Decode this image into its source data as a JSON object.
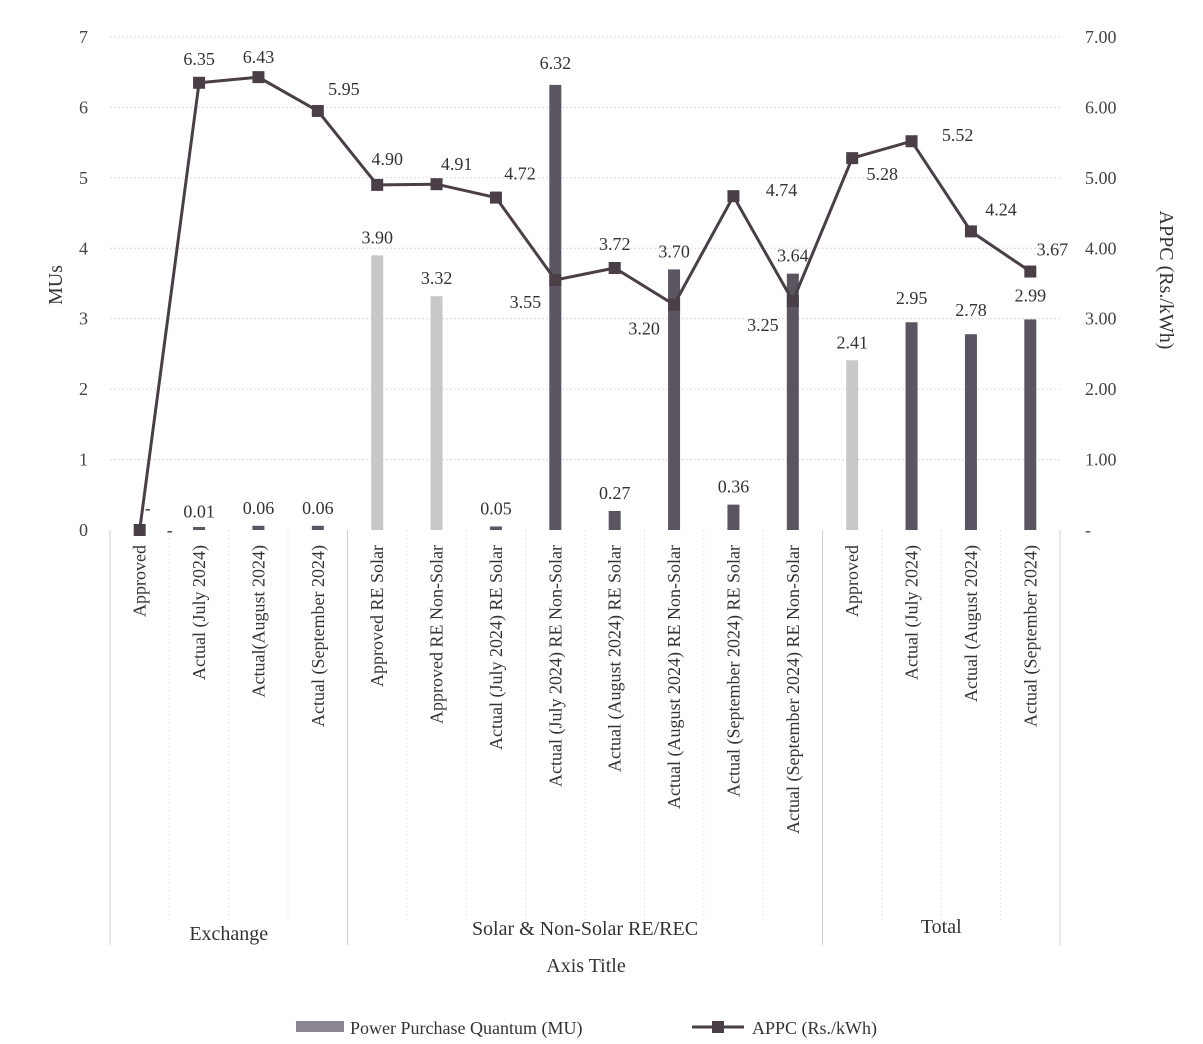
{
  "chart_data": {
    "type": "bar",
    "combo": "bar-line-dual-axis",
    "title": "",
    "xlabel": "Axis Title",
    "ylabel": "MUs",
    "y2label": "APPC (Rs./kWh)",
    "ylim": [
      0,
      7
    ],
    "y2lim": [
      0,
      7
    ],
    "yticks": [
      "0",
      "1",
      "2",
      "3",
      "4",
      "5",
      "6",
      "7"
    ],
    "y2ticks": [
      "-",
      "1.00",
      "2.00",
      "3.00",
      "4.00",
      "5.00",
      "6.00",
      "7.00"
    ],
    "grid": true,
    "legend_position": "bottom",
    "groups": [
      {
        "label": "Exchange",
        "count": 4
      },
      {
        "label": "Solar & Non-Solar RE/REC",
        "count": 8
      },
      {
        "label": "Total",
        "count": 4
      }
    ],
    "categories": [
      "Approved",
      "Actual (July 2024)",
      "Actual(August 2024)",
      "Actual (September 2024)",
      "Approved RE Solar",
      "Approved RE Non-Solar",
      "Actual (July 2024) RE Solar",
      "Actual (July 2024) RE Non-Solar",
      "Actual (August 2024) RE Solar",
      "Actual (August 2024) RE Non-Solar",
      "Actual (September 2024) RE Solar",
      "Actual (September 2024) RE Non-Solar",
      "Approved",
      "Actual (July 2024)",
      "Actual (August 2024)",
      "Actual (September 2024)"
    ],
    "series": [
      {
        "name": "Power Purchase Quantum (MU)",
        "kind": "bar",
        "axis": "left",
        "color": "#5a5560",
        "approved_color": "#c8c8c8",
        "values": [
          0,
          0.01,
          0.06,
          0.06,
          3.9,
          3.32,
          0.05,
          6.32,
          0.27,
          3.7,
          0.36,
          3.64,
          2.41,
          2.95,
          2.78,
          2.99
        ],
        "labels": [
          "-",
          "0.01",
          "0.06",
          "0.06",
          "3.90",
          "3.32",
          "0.05",
          "6.32",
          "0.27",
          "3.70",
          "0.36",
          "3.64",
          "2.41",
          "2.95",
          "2.78",
          "2.99"
        ],
        "light": [
          true,
          false,
          false,
          false,
          true,
          true,
          false,
          false,
          false,
          false,
          false,
          false,
          true,
          false,
          false,
          false
        ]
      },
      {
        "name": "APPC (Rs./kWh)",
        "kind": "line",
        "axis": "right",
        "color": "#4a3f47",
        "values": [
          0,
          6.35,
          6.43,
          5.95,
          4.9,
          4.91,
          4.72,
          3.55,
          3.72,
          3.2,
          4.74,
          3.25,
          5.28,
          5.52,
          4.24,
          3.67
        ],
        "labels": [
          "-",
          "6.35",
          "6.43",
          "5.95",
          "4.90",
          "4.91",
          "4.72",
          "3.55",
          "3.72",
          "3.20",
          "4.74",
          "3.25",
          "5.28",
          "5.52",
          "4.24",
          "3.67"
        ]
      }
    ]
  }
}
